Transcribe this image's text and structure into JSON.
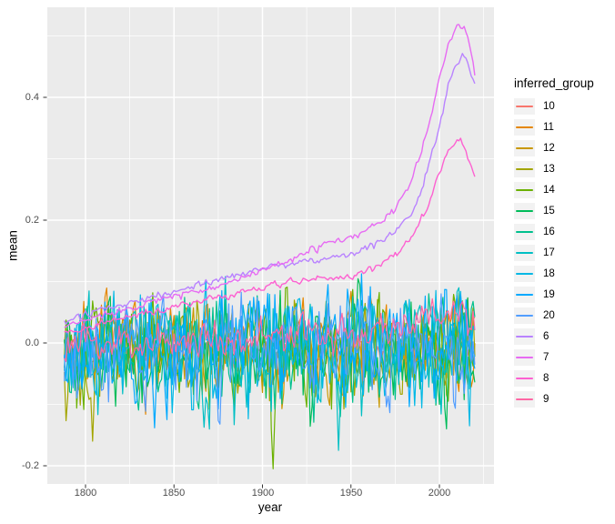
{
  "theme": {
    "figure_bg": "#FFFFFF",
    "panel_bg": "#EBEBEB",
    "grid_major": "#FFFFFF",
    "grid_minor": "#FFFFFF",
    "tick_mark_color": "#333333",
    "tick_label_color": "#4D4D4D",
    "title_color": "#000000",
    "legend_key_bg": "#F2F2F2"
  },
  "chart_data": {
    "type": "line",
    "title": "",
    "xlabel": "year",
    "ylabel": "mean",
    "legend_title": "inferred_group",
    "legend_position": "right",
    "grid": true,
    "xlim": [
      1778.4,
      2030.9
    ],
    "ylim": [
      -0.2296,
      0.5467
    ],
    "x_ticks": [
      1800,
      1850,
      1900,
      1950,
      2000
    ],
    "x_tick_labels": [
      "1800",
      "1850",
      "1900",
      "1950",
      "2000"
    ],
    "x_minor_ticks": [
      1825,
      1875,
      1925,
      1975,
      2025
    ],
    "y_ticks": [
      0.4,
      0.2,
      0.0,
      -0.2
    ],
    "y_tick_labels": [
      "0.4",
      "0.2",
      "0.0",
      "-0.2"
    ],
    "y_minor_ticks": [
      0.5,
      0.3,
      0.1,
      -0.1
    ],
    "x_start": 1788,
    "x_end": 2020,
    "x_step": 1,
    "noise_model": {
      "type": "ar1",
      "phi": 0.35,
      "scale_mult": 1.7
    },
    "series": [
      {
        "name": "10",
        "color": "#F8766D",
        "kind": "noisy",
        "seed": 3,
        "noise_amp": 0.03,
        "mean_anchors": [
          [
            1788,
            -0.01
          ],
          [
            2020,
            -0.01
          ]
        ],
        "events": []
      },
      {
        "name": "11",
        "color": "#E58700",
        "kind": "noisy",
        "seed": 7,
        "noise_amp": 0.06,
        "mean_anchors": [
          [
            1788,
            -0.01
          ],
          [
            2020,
            -0.01
          ]
        ],
        "events": []
      },
      {
        "name": "12",
        "color": "#C99800",
        "kind": "noisy",
        "seed": 11,
        "noise_amp": 0.055,
        "mean_anchors": [
          [
            1788,
            -0.01
          ],
          [
            2020,
            -0.01
          ]
        ],
        "events": []
      },
      {
        "name": "13",
        "color": "#A3A500",
        "kind": "noisy",
        "seed": 13,
        "noise_amp": 0.065,
        "mean_anchors": [
          [
            1788,
            -0.01
          ],
          [
            2020,
            -0.01
          ]
        ],
        "events": [
          [
            1804,
            -0.16,
            1
          ]
        ]
      },
      {
        "name": "14",
        "color": "#6BB100",
        "kind": "noisy",
        "seed": 2,
        "noise_amp": 0.085,
        "mean_anchors": [
          [
            1788,
            -0.01
          ],
          [
            2020,
            -0.01
          ]
        ],
        "events": [
          [
            1906,
            -0.205,
            1
          ]
        ]
      },
      {
        "name": "15",
        "color": "#00BC59",
        "kind": "noisy",
        "seed": 5,
        "noise_amp": 0.075,
        "mean_anchors": [
          [
            1788,
            -0.01
          ],
          [
            2020,
            -0.01
          ]
        ],
        "events": [
          [
            2004,
            -0.14,
            1
          ]
        ]
      },
      {
        "name": "16",
        "color": "#00C08D",
        "kind": "noisy",
        "seed": 8,
        "noise_amp": 0.075,
        "mean_anchors": [
          [
            1788,
            -0.01
          ],
          [
            2020,
            -0.01
          ]
        ],
        "events": [
          [
            1944,
            -0.12,
            1
          ]
        ]
      },
      {
        "name": "17",
        "color": "#00BFC4",
        "kind": "noisy",
        "seed": 21,
        "noise_amp": 0.08,
        "mean_anchors": [
          [
            1788,
            -0.01
          ],
          [
            2020,
            -0.01
          ]
        ],
        "events": [
          [
            1943,
            -0.175,
            2
          ]
        ]
      },
      {
        "name": "18",
        "color": "#00B8E5",
        "kind": "noisy",
        "seed": 14,
        "noise_amp": 0.08,
        "mean_anchors": [
          [
            1788,
            -0.01
          ],
          [
            2020,
            -0.01
          ]
        ],
        "events": []
      },
      {
        "name": "19",
        "color": "#00A9FF",
        "kind": "noisy",
        "seed": 17,
        "noise_amp": 0.08,
        "mean_anchors": [
          [
            1788,
            -0.01
          ],
          [
            2020,
            -0.01
          ]
        ],
        "events": []
      },
      {
        "name": "20",
        "color": "#529EFF",
        "kind": "noisy",
        "seed": 19,
        "noise_amp": 0.07,
        "mean_anchors": [
          [
            1788,
            -0.01
          ],
          [
            2020,
            -0.01
          ]
        ],
        "events": []
      },
      {
        "name": "6",
        "color": "#B983FF",
        "kind": "trend",
        "seed": 31,
        "noise_amp": 0.005,
        "mean_anchors": [
          [
            1788,
            0.032
          ],
          [
            1800,
            0.045
          ],
          [
            1815,
            0.058
          ],
          [
            1830,
            0.07
          ],
          [
            1850,
            0.085
          ],
          [
            1870,
            0.1
          ],
          [
            1890,
            0.115
          ],
          [
            1900,
            0.122
          ],
          [
            1910,
            0.128
          ],
          [
            1925,
            0.133
          ],
          [
            1940,
            0.14
          ],
          [
            1950,
            0.145
          ],
          [
            1960,
            0.155
          ],
          [
            1970,
            0.17
          ],
          [
            1980,
            0.195
          ],
          [
            1985,
            0.215
          ],
          [
            1990,
            0.25
          ],
          [
            1995,
            0.3
          ],
          [
            2000,
            0.35
          ],
          [
            2005,
            0.42
          ],
          [
            2008,
            0.44
          ],
          [
            2010,
            0.455
          ],
          [
            2012,
            0.465
          ],
          [
            2013,
            0.47
          ],
          [
            2015,
            0.46
          ],
          [
            2017,
            0.445
          ],
          [
            2019,
            0.43
          ],
          [
            2020,
            0.42
          ]
        ],
        "events": []
      },
      {
        "name": "7",
        "color": "#E76BF3",
        "kind": "trend",
        "seed": 37,
        "noise_amp": 0.005,
        "mean_anchors": [
          [
            1788,
            0.025
          ],
          [
            1800,
            0.037
          ],
          [
            1815,
            0.05
          ],
          [
            1830,
            0.062
          ],
          [
            1850,
            0.075
          ],
          [
            1870,
            0.09
          ],
          [
            1890,
            0.108
          ],
          [
            1900,
            0.115
          ],
          [
            1910,
            0.128
          ],
          [
            1920,
            0.14
          ],
          [
            1930,
            0.155
          ],
          [
            1938,
            0.163
          ],
          [
            1945,
            0.166
          ],
          [
            1952,
            0.172
          ],
          [
            1960,
            0.185
          ],
          [
            1968,
            0.2
          ],
          [
            1975,
            0.22
          ],
          [
            1980,
            0.24
          ],
          [
            1985,
            0.27
          ],
          [
            1990,
            0.31
          ],
          [
            1995,
            0.37
          ],
          [
            2000,
            0.43
          ],
          [
            2005,
            0.49
          ],
          [
            2008,
            0.505
          ],
          [
            2010,
            0.515
          ],
          [
            2012,
            0.51
          ],
          [
            2014,
            0.515
          ],
          [
            2016,
            0.5
          ],
          [
            2018,
            0.47
          ],
          [
            2020,
            0.44
          ]
        ],
        "events": []
      },
      {
        "name": "8",
        "color": "#FD61D1",
        "kind": "trend",
        "seed": 41,
        "noise_amp": 0.005,
        "mean_anchors": [
          [
            1788,
            0.015
          ],
          [
            1800,
            0.025
          ],
          [
            1820,
            0.04
          ],
          [
            1840,
            0.052
          ],
          [
            1860,
            0.065
          ],
          [
            1880,
            0.078
          ],
          [
            1900,
            0.09
          ],
          [
            1915,
            0.098
          ],
          [
            1930,
            0.103
          ],
          [
            1945,
            0.107
          ],
          [
            1955,
            0.112
          ],
          [
            1965,
            0.125
          ],
          [
            1975,
            0.145
          ],
          [
            1982,
            0.165
          ],
          [
            1988,
            0.19
          ],
          [
            1993,
            0.22
          ],
          [
            1998,
            0.26
          ],
          [
            2003,
            0.3
          ],
          [
            2007,
            0.32
          ],
          [
            2010,
            0.33
          ],
          [
            2012,
            0.328
          ],
          [
            2014,
            0.32
          ],
          [
            2016,
            0.305
          ],
          [
            2018,
            0.288
          ],
          [
            2020,
            0.27
          ]
        ],
        "events": []
      },
      {
        "name": "9",
        "color": "#FF67A4",
        "kind": "noisy",
        "seed": 23,
        "noise_amp": 0.025,
        "mean_anchors": [
          [
            1788,
            -0.005
          ],
          [
            1850,
            0.005
          ],
          [
            1900,
            0.01
          ],
          [
            1950,
            0.015
          ],
          [
            1985,
            0.035
          ],
          [
            2000,
            0.05
          ],
          [
            2010,
            0.045
          ],
          [
            2020,
            0.025
          ]
        ],
        "events": []
      }
    ]
  }
}
